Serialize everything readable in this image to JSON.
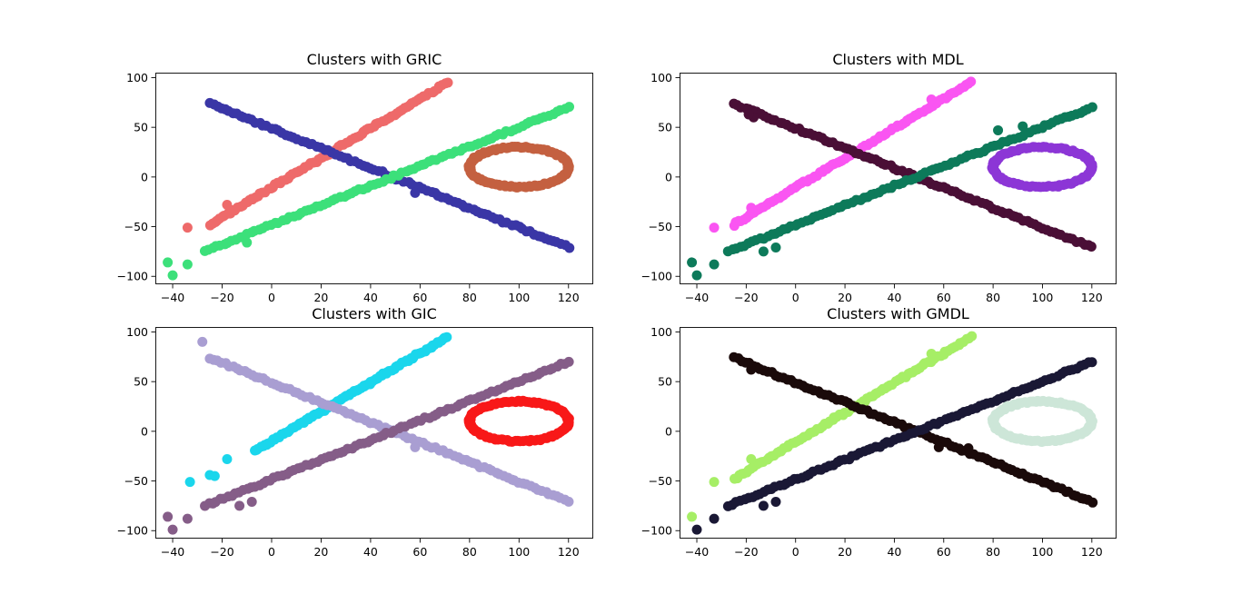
{
  "chart_data": [
    {
      "type": "scatter",
      "title": "Clusters with GRIC",
      "xlim": [
        -47,
        130
      ],
      "ylim": [
        -108,
        105
      ],
      "xticks": [
        -40,
        -20,
        0,
        20,
        40,
        60,
        80,
        100,
        120
      ],
      "yticks": [
        -100,
        -50,
        0,
        50,
        100
      ],
      "series": [
        {
          "color": "#ee6a6a",
          "shape": "line",
          "x": [
            -25,
            71
          ],
          "y": [
            -48,
            95
          ],
          "extra": [
            [
              -34,
              -51
            ],
            [
              -18,
              -28
            ],
            [
              -8,
              -22
            ]
          ]
        },
        {
          "color": "#3a36a6",
          "shape": "line",
          "x": [
            -25,
            120
          ],
          "y": [
            74,
            -71
          ],
          "extra": [
            [
              58,
              -16
            ]
          ]
        },
        {
          "color": "#3ce07a",
          "shape": "line",
          "x": [
            -27,
            120
          ],
          "y": [
            -75,
            70
          ],
          "extra": [
            [
              -42,
              -86
            ],
            [
              -40,
              -99
            ],
            [
              -34,
              -88
            ],
            [
              -10,
              -66
            ]
          ]
        },
        {
          "color": "#c46040",
          "shape": "ellipse",
          "cx": 100,
          "cy": 10,
          "rx": 20,
          "ry": 20
        }
      ]
    },
    {
      "type": "scatter",
      "title": "Clusters with MDL",
      "xlim": [
        -47,
        130
      ],
      "ylim": [
        -108,
        105
      ],
      "xticks": [
        -40,
        -20,
        0,
        20,
        40,
        60,
        80,
        100,
        120
      ],
      "yticks": [
        -100,
        -50,
        0,
        50,
        100
      ],
      "series": [
        {
          "color": "#fa55f2",
          "shape": "line",
          "x": [
            -25,
            71
          ],
          "y": [
            -48,
            95
          ],
          "extra": [
            [
              -33,
              -51
            ],
            [
              -18,
              -31
            ],
            [
              55,
              78
            ]
          ]
        },
        {
          "color": "#4a0f36",
          "shape": "line",
          "x": [
            -25,
            120
          ],
          "y": [
            74,
            -71
          ],
          "extra": [
            [
              -17,
              60
            ],
            [
              -19,
              63
            ]
          ]
        },
        {
          "color": "#0d7a5a",
          "shape": "line",
          "x": [
            -27,
            120
          ],
          "y": [
            -75,
            70
          ],
          "extra": [
            [
              -42,
              -86
            ],
            [
              -40,
              -99
            ],
            [
              -33,
              -88
            ],
            [
              -13,
              -75
            ],
            [
              -8,
              -71
            ],
            [
              82,
              47
            ],
            [
              92,
              51
            ]
          ]
        },
        {
          "color": "#8c36d6",
          "shape": "ellipse",
          "cx": 100,
          "cy": 10,
          "rx": 20,
          "ry": 20
        }
      ]
    },
    {
      "type": "scatter",
      "title": "Clusters with GIC",
      "xlim": [
        -47,
        130
      ],
      "ylim": [
        -108,
        105
      ],
      "xticks": [
        -40,
        -20,
        0,
        20,
        40,
        60,
        80,
        100,
        120
      ],
      "yticks": [
        -100,
        -50,
        0,
        50,
        100
      ],
      "series": [
        {
          "color": "#1ad6ec",
          "shape": "line",
          "x": [
            -7,
            71
          ],
          "y": [
            -20,
            95
          ],
          "extra": [
            [
              -33,
              -51
            ],
            [
              -18,
              -28
            ],
            [
              -23,
              -45
            ],
            [
              -25,
              -44
            ]
          ]
        },
        {
          "color": "#a99ed2",
          "shape": "line",
          "x": [
            -25,
            120
          ],
          "y": [
            74,
            -71
          ],
          "extra": [
            [
              -28,
              90
            ],
            [
              58,
              -16
            ]
          ]
        },
        {
          "color": "#855d88",
          "shape": "line",
          "x": [
            -27,
            120
          ],
          "y": [
            -75,
            70
          ],
          "extra": [
            [
              -42,
              -86
            ],
            [
              -40,
              -99
            ],
            [
              -34,
              -88
            ],
            [
              -13,
              -75
            ],
            [
              -8,
              -71
            ]
          ]
        },
        {
          "color": "#f81818",
          "shape": "ellipse",
          "cx": 100,
          "cy": 10,
          "rx": 20,
          "ry": 20
        }
      ]
    },
    {
      "type": "scatter",
      "title": "Clusters with GMDL",
      "xlim": [
        -47,
        130
      ],
      "ylim": [
        -108,
        105
      ],
      "xticks": [
        -40,
        -20,
        0,
        20,
        40,
        60,
        80,
        100,
        120
      ],
      "yticks": [
        -100,
        -50,
        0,
        50,
        100
      ],
      "series": [
        {
          "color": "#a6ee66",
          "shape": "line",
          "x": [
            -25,
            71
          ],
          "y": [
            -48,
            95
          ],
          "extra": [
            [
              -42,
              -86
            ],
            [
              -33,
              -51
            ],
            [
              -18,
              -28
            ],
            [
              55,
              78
            ]
          ]
        },
        {
          "color": "#1a0a0a",
          "shape": "line",
          "x": [
            -25,
            120
          ],
          "y": [
            74,
            -71
          ],
          "extra": [
            [
              -18,
              62
            ],
            [
              58,
              -16
            ],
            [
              70,
              -17
            ]
          ]
        },
        {
          "color": "#1a1835",
          "shape": "line",
          "x": [
            -27,
            120
          ],
          "y": [
            -75,
            70
          ],
          "extra": [
            [
              -40,
              -99
            ],
            [
              -33,
              -88
            ],
            [
              -13,
              -75
            ],
            [
              -8,
              -71
            ]
          ]
        },
        {
          "color": "#cde6d8",
          "shape": "ellipse",
          "cx": 100,
          "cy": 10,
          "rx": 20,
          "ry": 20
        }
      ]
    }
  ]
}
